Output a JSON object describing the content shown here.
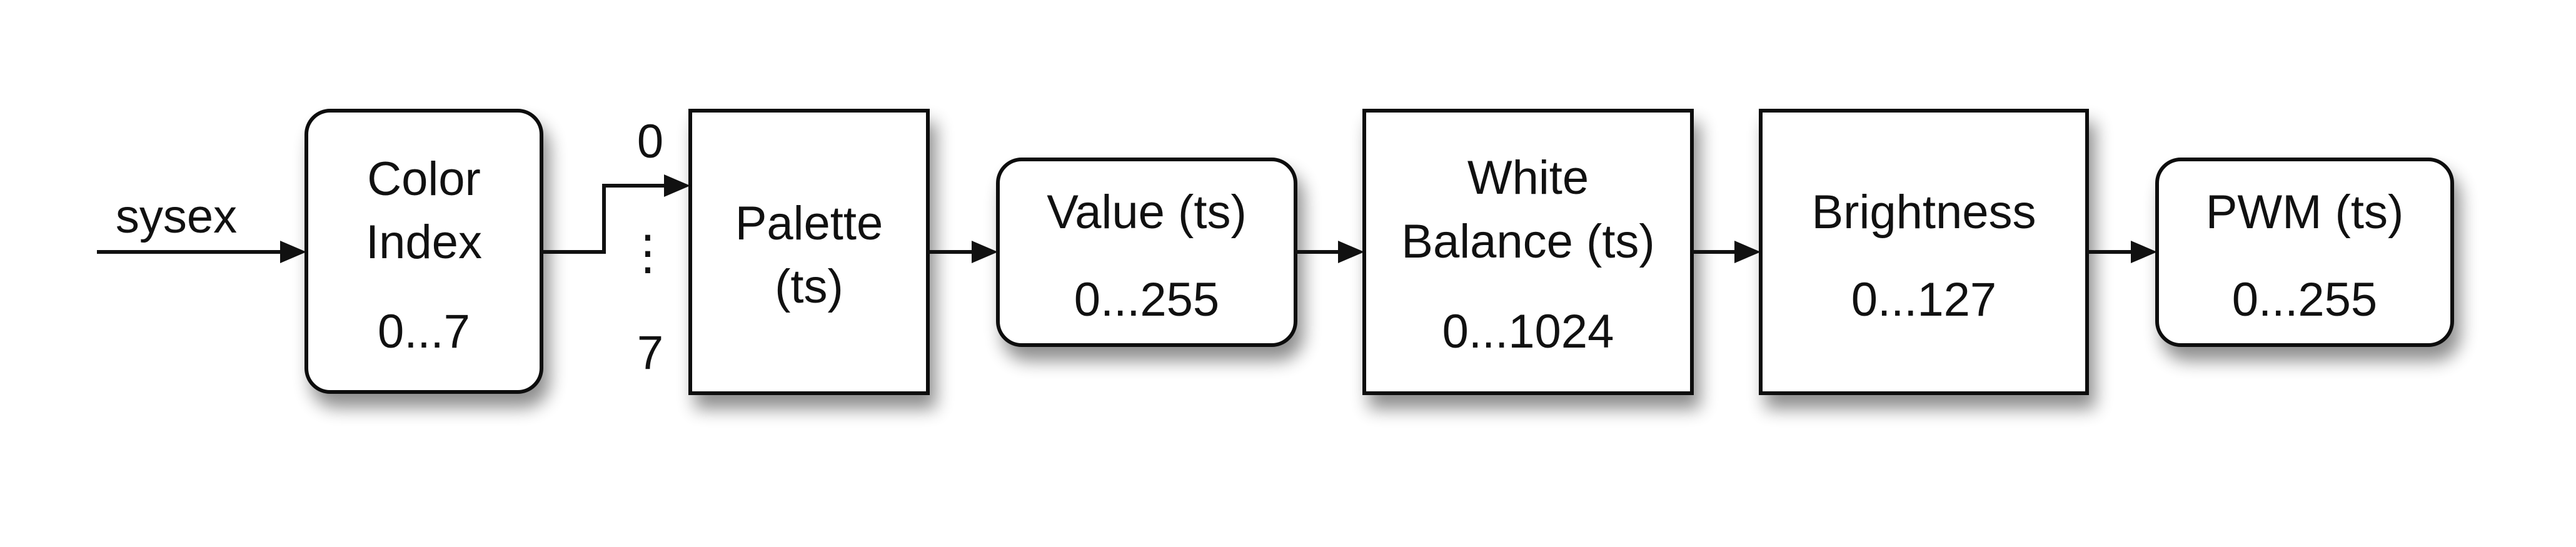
{
  "input": {
    "label": "sysex"
  },
  "blocks": [
    {
      "id": "color-index",
      "lines": [
        "Color",
        "Index"
      ],
      "range": "0...7"
    },
    {
      "id": "palette",
      "lines": [
        "Palette",
        "(ts)"
      ],
      "range": ""
    },
    {
      "id": "value",
      "lines": [
        "Value (ts)"
      ],
      "range": "0...255"
    },
    {
      "id": "white-balance",
      "lines": [
        "White",
        "Balance (ts)"
      ],
      "range": "0...1024"
    },
    {
      "id": "brightness",
      "lines": [
        "Brightness"
      ],
      "range": "0...127"
    },
    {
      "id": "pwm",
      "lines": [
        "PWM (ts)"
      ],
      "range": "0...255"
    }
  ],
  "palette_index": {
    "top": "0",
    "ellipsis": "⋮",
    "bottom": "7"
  },
  "colors": {
    "stroke": "#111111",
    "fill": "#ffffff",
    "shadow": "#000000"
  }
}
